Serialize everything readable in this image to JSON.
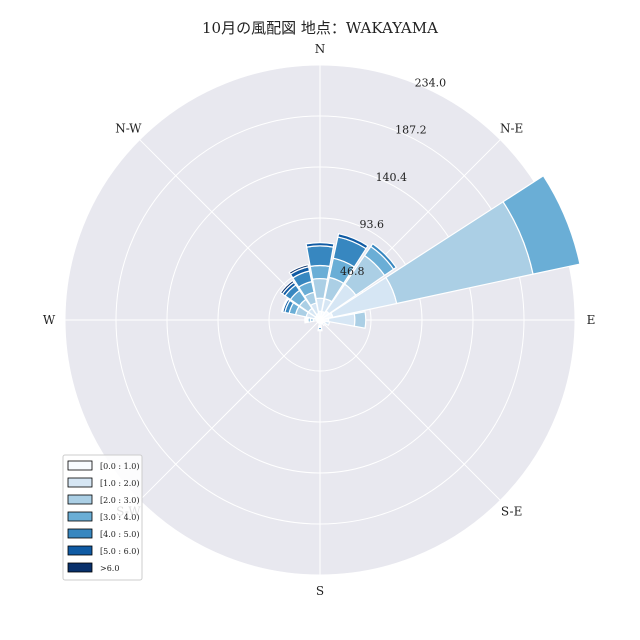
{
  "chart_data": {
    "type": "windrose",
    "title": "10月の風配図 地点：WAKAYAMA",
    "directions": [
      "N",
      "NNE",
      "NE",
      "ENE",
      "E",
      "ESE",
      "SE",
      "SSE",
      "S",
      "SSW",
      "SW",
      "WSW",
      "W",
      "WNW",
      "NW",
      "NNW"
    ],
    "direction_labels": {
      "N": "N",
      "NE": "N-E",
      "E": "E",
      "SE": "S-E",
      "S": "S",
      "SW": "S-W",
      "W": "W",
      "NW": "N-W"
    },
    "r_ticks": [
      "46.8",
      "93.6",
      "140.4",
      "187.2",
      "234.0"
    ],
    "r_max": 234.0,
    "grid": true,
    "legend_placement": "lower-left",
    "speed_bins": [
      {
        "name": "[0.0 : 1.0)",
        "color": "#f7fbff"
      },
      {
        "name": "[1.0 : 2.0)",
        "color": "#d6e6f4"
      },
      {
        "name": "[2.0 : 3.0)",
        "color": "#abcfe5"
      },
      {
        "name": "[3.0 : 4.0)",
        "color": "#6aaed6"
      },
      {
        "name": "[4.0 : 5.0)",
        "color": "#3787c0"
      },
      {
        "name": "[5.0 : 6.0)",
        "color": "#105ba4"
      },
      {
        "name": ">6.0",
        "color": "#08306b"
      }
    ],
    "counts": {
      "N": [
        8,
        12,
        18,
        12,
        18,
        3,
        0
      ],
      "NNE": [
        8,
        12,
        20,
        18,
        20,
        3,
        0
      ],
      "NE": [
        10,
        30,
        32,
        10,
        3,
        0,
        0
      ],
      "ENE": [
        12,
        60,
        128,
        44,
        0,
        0,
        0
      ],
      "E": [
        8,
        24,
        10,
        0,
        0,
        0,
        0
      ],
      "ESE": [
        5,
        4,
        0,
        0,
        0,
        0,
        0
      ],
      "SE": [
        4,
        2,
        0,
        0,
        0,
        0,
        0
      ],
      "SSE": [
        3,
        1,
        0,
        0,
        0,
        0,
        0
      ],
      "S": [
        3,
        2,
        1,
        1,
        2,
        1,
        0
      ],
      "SSW": [
        2,
        1,
        0,
        0,
        0,
        0,
        0
      ],
      "SW": [
        2,
        1,
        0,
        0,
        0,
        0,
        0
      ],
      "WSW": [
        2,
        1,
        0,
        0,
        0,
        0,
        0
      ],
      "W": [
        3,
        3,
        3,
        2,
        1,
        1,
        1
      ],
      "WNW": [
        5,
        8,
        10,
        6,
        4,
        2,
        1
      ],
      "NW": [
        5,
        8,
        10,
        10,
        6,
        3,
        2
      ],
      "NNW": [
        6,
        10,
        10,
        10,
        10,
        4,
        2
      ]
    },
    "colors": {
      "background": "#e8e8ef",
      "grid": "#ffffff",
      "bar_edge": "#ffffff"
    }
  }
}
